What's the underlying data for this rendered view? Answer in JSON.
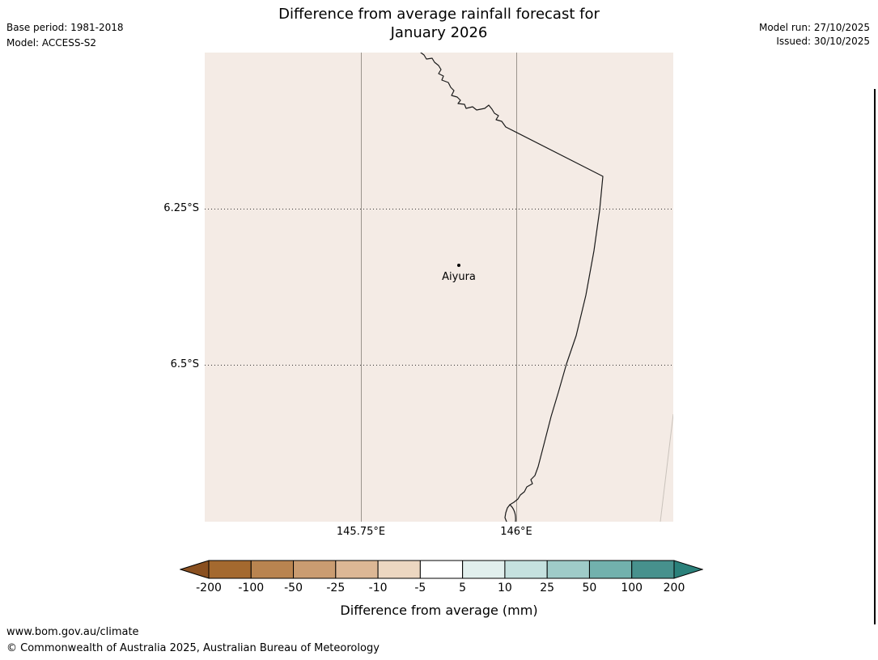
{
  "header": {
    "title_line1": "Difference from average rainfall forecast for",
    "title_line2": "January 2026",
    "base_period": "Base period: 1981-2018",
    "model": "Model: ACCESS-S2",
    "model_run": "Model run: 27/10/2025",
    "issued": "Issued: 30/10/2025"
  },
  "map": {
    "station_label": "Aiyura",
    "y_labels": [
      "6.25°S",
      "6.5°S"
    ],
    "x_labels": [
      "145.75°E",
      "146°E"
    ],
    "background_color": "#f4ebe5"
  },
  "colorbar": {
    "caption": "Difference from average (mm)",
    "labels": [
      "-200",
      "-100",
      "-50",
      "-25",
      "-10",
      "-5",
      "5",
      "10",
      "25",
      "50",
      "100",
      "200"
    ],
    "cell_colors": [
      "#a4692f",
      "#b98450",
      "#ca9c71",
      "#dcb795",
      "#ecd7c1",
      "#ffffff",
      "#e1efed",
      "#c5e1df",
      "#9fcbc8",
      "#72b1ad",
      "#47918d"
    ],
    "arrow_left_color": "#8a5020",
    "arrow_right_color": "#2b817b"
  },
  "footer": {
    "link": "www.bom.gov.au/climate",
    "copyright": "© Commonwealth of Australia 2025, Australian Bureau of Meteorology"
  }
}
